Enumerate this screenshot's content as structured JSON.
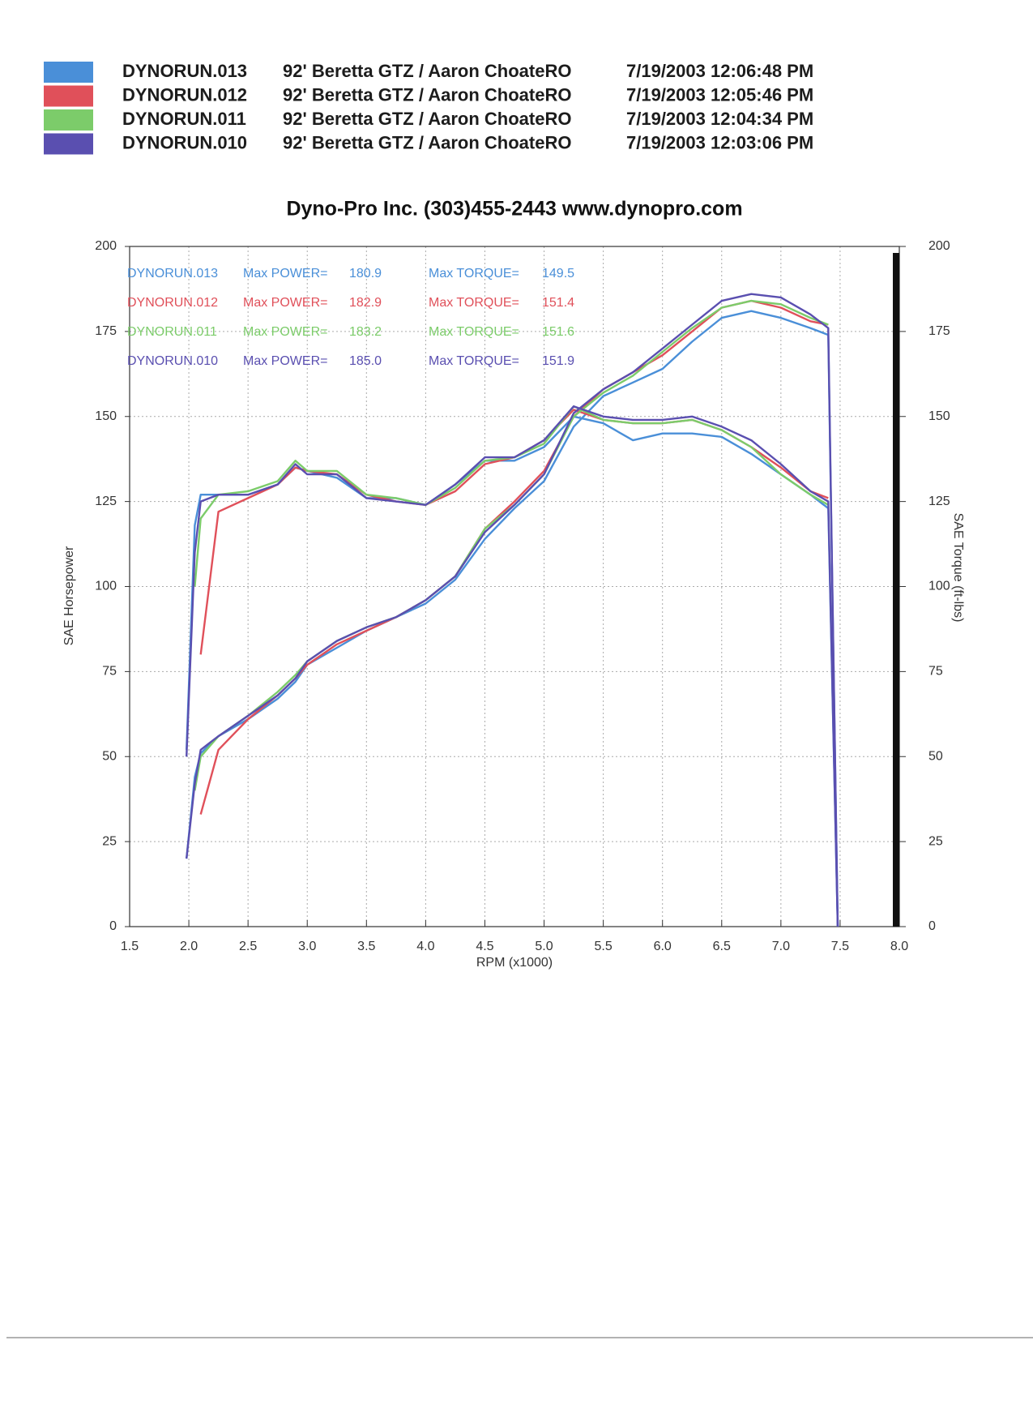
{
  "chart_data": {
    "type": "line",
    "title": "Dyno-Pro Inc.   (303)455-2443   www.dynopro.com",
    "xlabel": "RPM (x1000)",
    "ylabel": "SAE Horsepower",
    "y2label": "SAE Torque (ft-lbs)",
    "power_label": "Max POWER=",
    "torque_label": "Max TORQUE=",
    "grid": true,
    "xlim": [
      1.5,
      8.0
    ],
    "ylim": [
      0,
      200
    ],
    "y2lim": [
      0,
      200
    ],
    "xticks": [
      {
        "value": 1.5,
        "label": "1.5"
      },
      {
        "value": 2.0,
        "label": "2.0"
      },
      {
        "value": 2.5,
        "label": "2.5"
      },
      {
        "value": 3.0,
        "label": "3.0"
      },
      {
        "value": 3.5,
        "label": "3.5"
      },
      {
        "value": 4.0,
        "label": "4.0"
      },
      {
        "value": 4.5,
        "label": "4.5"
      },
      {
        "value": 5.0,
        "label": "5.0"
      },
      {
        "value": 5.5,
        "label": "5.5"
      },
      {
        "value": 6.0,
        "label": "6.0"
      },
      {
        "value": 6.5,
        "label": "6.5"
      },
      {
        "value": 7.0,
        "label": "7.0"
      },
      {
        "value": 7.5,
        "label": "7.5"
      },
      {
        "value": 8.0,
        "label": "8.0"
      }
    ],
    "yticks": [
      0,
      25,
      50,
      75,
      100,
      125,
      150,
      175,
      200
    ],
    "y2ticks": [
      0,
      25,
      50,
      75,
      100,
      125,
      150,
      175,
      200
    ],
    "x": [
      1.98,
      2.05,
      2.1,
      2.25,
      2.5,
      2.75,
      2.9,
      3.0,
      3.25,
      3.5,
      3.75,
      4.0,
      4.25,
      4.5,
      4.75,
      5.0,
      5.25,
      5.5,
      5.75,
      6.0,
      6.25,
      6.5,
      6.75,
      7.0,
      7.25,
      7.4,
      7.48
    ],
    "series": [
      {
        "name": "DYNORUN.013",
        "description": "92' Beretta GTZ / Aaron ChoateRO",
        "timestamp": "7/19/2003 12:06:48 PM",
        "color": "#4a8fd8",
        "max_power": {
          "value": 180.9,
          "label": "180.9"
        },
        "max_torque": {
          "value": 149.5,
          "label": "149.5"
        },
        "values": [
          20,
          44,
          51,
          56,
          61,
          67,
          72,
          77,
          82,
          87,
          91,
          95,
          102,
          114,
          123,
          131,
          147,
          156,
          160,
          164,
          172,
          179,
          181,
          179,
          176,
          174,
          0
        ],
        "torque": [
          52,
          118,
          127,
          127,
          127,
          130,
          135,
          134,
          132,
          126,
          126,
          124,
          130,
          137,
          137,
          141,
          150,
          148,
          143,
          145,
          145,
          144,
          139,
          133,
          127,
          123,
          0
        ]
      },
      {
        "name": "DYNORUN.012",
        "description": "92' Beretta GTZ / Aaron ChoateRO",
        "timestamp": "7/19/2003 12:05:46 PM",
        "color": "#e0505a",
        "max_power": {
          "value": 182.9,
          "label": "182.9"
        },
        "max_torque": {
          "value": 151.4,
          "label": "151.4"
        },
        "values": [
          null,
          null,
          33,
          52,
          61,
          68,
          73,
          77,
          83,
          87,
          91,
          96,
          103,
          117,
          125,
          134,
          150,
          158,
          163,
          168,
          175,
          182,
          184,
          182,
          178,
          177,
          null
        ],
        "torque": [
          null,
          null,
          80,
          122,
          126,
          130,
          135,
          134,
          133,
          127,
          125,
          124,
          128,
          136,
          138,
          143,
          152,
          149,
          148,
          148,
          149,
          146,
          141,
          135,
          128,
          126,
          null
        ]
      },
      {
        "name": "DYNORUN.011",
        "description": "92' Beretta GTZ / Aaron ChoateRO",
        "timestamp": "7/19/2003 12:04:34 PM",
        "color": "#7ccc6a",
        "max_power": {
          "value": 183.2,
          "label": "183.2"
        },
        "max_torque": {
          "value": 151.6,
          "label": "151.6"
        },
        "values": [
          null,
          40,
          50,
          56,
          62,
          69,
          74,
          78,
          84,
          88,
          91,
          96,
          103,
          117,
          124,
          133,
          150,
          157,
          162,
          169,
          176,
          182,
          184,
          183,
          179,
          177,
          null
        ],
        "torque": [
          null,
          100,
          120,
          127,
          128,
          131,
          137,
          134,
          134,
          127,
          126,
          124,
          129,
          137,
          138,
          142,
          153,
          149,
          148,
          148,
          149,
          146,
          141,
          133,
          127,
          124,
          null
        ]
      },
      {
        "name": "DYNORUN.010",
        "description": "92' Beretta GTZ / Aaron ChoateRO",
        "timestamp": "7/19/2003 12:03:06 PM",
        "color": "#5a4fb0",
        "max_power": {
          "value": 185.0,
          "label": "185.0"
        },
        "max_torque": {
          "value": 151.9,
          "label": "151.9"
        },
        "values": [
          20,
          42,
          52,
          56,
          62,
          68,
          73,
          78,
          84,
          88,
          91,
          96,
          103,
          116,
          124,
          133,
          151,
          158,
          163,
          170,
          177,
          184,
          186,
          185,
          180,
          176,
          0
        ],
        "torque": [
          50,
          110,
          125,
          127,
          127,
          130,
          136,
          133,
          133,
          126,
          125,
          124,
          130,
          138,
          138,
          143,
          153,
          150,
          149,
          149,
          150,
          147,
          143,
          136,
          128,
          125,
          0
        ]
      }
    ]
  }
}
